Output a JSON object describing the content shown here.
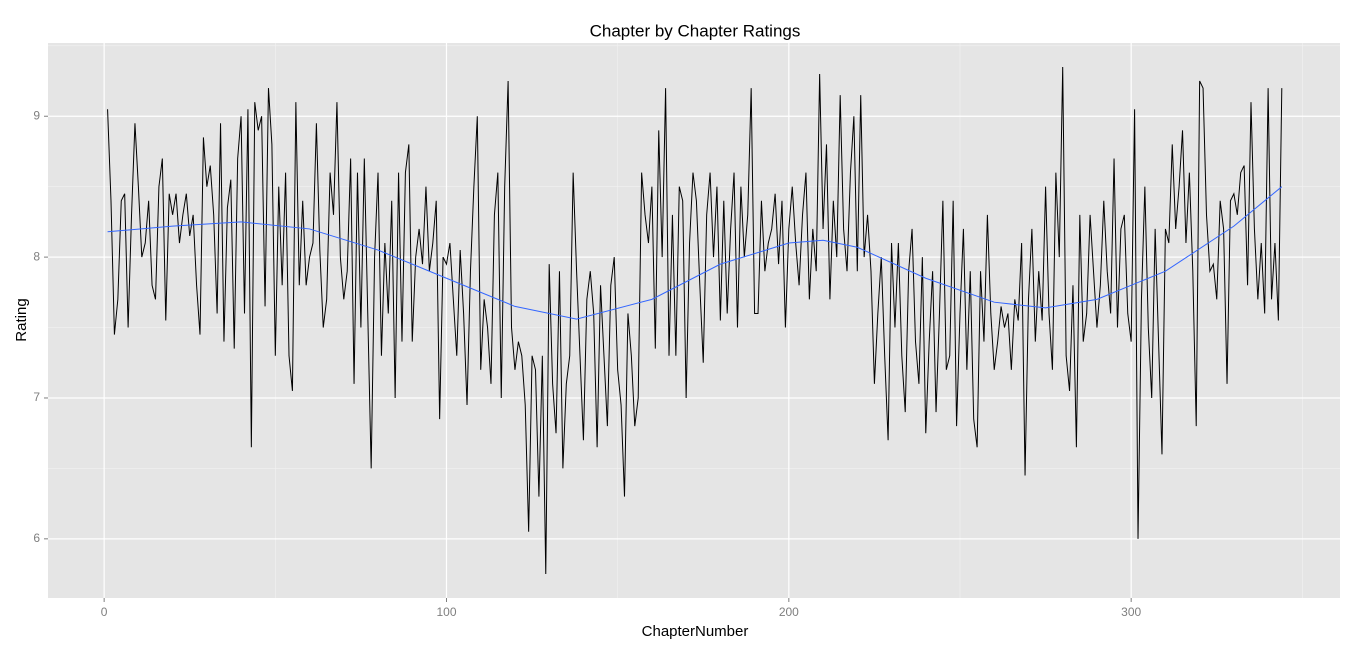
{
  "chart_data": {
    "type": "line",
    "title": "Chapter by Chapter Ratings",
    "xlabel": "ChapterNumber",
    "ylabel": "Rating",
    "color": "#000000",
    "grid": true,
    "xlim": [
      -16.4,
      361
    ],
    "ylim": [
      5.58,
      9.52
    ],
    "xticks": [
      0,
      100,
      200,
      300
    ],
    "yticks": [
      6,
      7,
      8,
      9
    ],
    "xminor": [
      50,
      150,
      250,
      350
    ],
    "yminor": [
      6.5,
      7.5,
      8.5,
      9.5
    ],
    "x": [
      1,
      2,
      3,
      4,
      5,
      6,
      7,
      8,
      9,
      10,
      11,
      12,
      13,
      14,
      15,
      16,
      17,
      18,
      19,
      20,
      21,
      22,
      23,
      24,
      25,
      26,
      27,
      28,
      29,
      30,
      31,
      32,
      33,
      34,
      35,
      36,
      37,
      38,
      39,
      40,
      41,
      42,
      43,
      44,
      45,
      46,
      47,
      48,
      49,
      50,
      51,
      52,
      53,
      54,
      55,
      56,
      57,
      58,
      59,
      60,
      61,
      62,
      63,
      64,
      65,
      66,
      67,
      68,
      69,
      70,
      71,
      72,
      73,
      74,
      75,
      76,
      77,
      78,
      79,
      80,
      81,
      82,
      83,
      84,
      85,
      86,
      87,
      88,
      89,
      90,
      91,
      92,
      93,
      94,
      95,
      96,
      97,
      98,
      99,
      100,
      101,
      102,
      103,
      104,
      105,
      106,
      107,
      108,
      109,
      110,
      111,
      112,
      113,
      114,
      115,
      116,
      117,
      118,
      119,
      120,
      121,
      122,
      123,
      124,
      125,
      126,
      127,
      128,
      129,
      130,
      131,
      132,
      133,
      134,
      135,
      136,
      137,
      138,
      139,
      140,
      141,
      142,
      143,
      144,
      145,
      146,
      147,
      148,
      149,
      150,
      151,
      152,
      153,
      154,
      155,
      156,
      157,
      158,
      159,
      160,
      161,
      162,
      163,
      164,
      165,
      166,
      167,
      168,
      169,
      170,
      171,
      172,
      173,
      174,
      175,
      176,
      177,
      178,
      179,
      180,
      181,
      182,
      183,
      184,
      185,
      186,
      187,
      188,
      189,
      190,
      191,
      192,
      193,
      194,
      195,
      196,
      197,
      198,
      199,
      200,
      201,
      202,
      203,
      204,
      205,
      206,
      207,
      208,
      209,
      210,
      211,
      212,
      213,
      214,
      215,
      216,
      217,
      218,
      219,
      220,
      221,
      222,
      223,
      224,
      225,
      226,
      227,
      228,
      229,
      230,
      231,
      232,
      233,
      234,
      235,
      236,
      237,
      238,
      239,
      240,
      241,
      242,
      243,
      244,
      245,
      246,
      247,
      248,
      249,
      250,
      251,
      252,
      253,
      254,
      255,
      256,
      257,
      258,
      259,
      260,
      261,
      262,
      263,
      264,
      265,
      266,
      267,
      268,
      269,
      270,
      271,
      272,
      273,
      274,
      275,
      276,
      277,
      278,
      279,
      280,
      281,
      282,
      283,
      284,
      285,
      286,
      287,
      288,
      289,
      290,
      291,
      292,
      293,
      294,
      295,
      296,
      297,
      298,
      299,
      300,
      301,
      302,
      303,
      304,
      305,
      306,
      307,
      308,
      309,
      310,
      311,
      312,
      313,
      314,
      315,
      316,
      317,
      318,
      319,
      320,
      321,
      322,
      323,
      324,
      325,
      326,
      327,
      328,
      329,
      330,
      331,
      332,
      333,
      334,
      335,
      336,
      337,
      338,
      339,
      340,
      341,
      342,
      343,
      344
    ],
    "values": [
      9.05,
      8.4,
      7.45,
      7.7,
      8.4,
      8.45,
      7.5,
      8.3,
      8.95,
      8.5,
      8.0,
      8.1,
      8.4,
      7.8,
      7.7,
      8.5,
      8.7,
      7.55,
      8.45,
      8.3,
      8.45,
      8.1,
      8.3,
      8.45,
      8.15,
      8.3,
      7.8,
      7.45,
      8.85,
      8.5,
      8.65,
      8.3,
      7.6,
      8.95,
      7.4,
      8.35,
      8.55,
      7.35,
      8.7,
      9.0,
      7.6,
      9.05,
      6.65,
      9.1,
      8.9,
      9.0,
      7.65,
      9.2,
      8.8,
      7.3,
      8.5,
      7.8,
      8.6,
      7.3,
      7.05,
      9.1,
      7.8,
      8.4,
      7.8,
      8.0,
      8.1,
      8.95,
      8.05,
      7.5,
      7.7,
      8.6,
      8.3,
      9.1,
      8.0,
      7.7,
      7.9,
      8.7,
      7.1,
      8.6,
      7.5,
      8.7,
      7.6,
      6.5,
      8.0,
      8.6,
      7.3,
      8.1,
      7.6,
      8.4,
      7.0,
      8.6,
      7.4,
      8.6,
      8.8,
      7.4,
      8.0,
      8.2,
      7.95,
      8.5,
      7.9,
      8.1,
      8.4,
      6.85,
      8.0,
      7.95,
      8.1,
      7.7,
      7.3,
      8.05,
      7.6,
      6.95,
      7.9,
      8.5,
      9.0,
      7.2,
      7.7,
      7.5,
      7.1,
      8.3,
      8.6,
      7.0,
      8.5,
      9.25,
      7.5,
      7.2,
      7.4,
      7.3,
      6.95,
      6.05,
      7.3,
      7.2,
      6.3,
      7.3,
      5.75,
      7.95,
      7.1,
      6.75,
      7.9,
      6.5,
      7.1,
      7.3,
      8.6,
      7.9,
      7.3,
      6.7,
      7.7,
      7.9,
      7.6,
      6.65,
      7.8,
      7.3,
      6.8,
      7.8,
      8.0,
      7.2,
      6.95,
      6.3,
      7.6,
      7.3,
      6.8,
      7.0,
      8.6,
      8.3,
      8.1,
      8.5,
      7.35,
      8.9,
      8.0,
      9.2,
      7.3,
      8.3,
      7.3,
      8.5,
      8.4,
      7.0,
      8.1,
      8.6,
      8.4,
      7.8,
      7.25,
      8.3,
      8.6,
      8.0,
      8.5,
      7.55,
      8.4,
      7.6,
      8.2,
      8.6,
      7.5,
      8.5,
      8.0,
      8.3,
      9.2,
      7.6,
      7.6,
      8.4,
      7.9,
      8.1,
      8.2,
      8.45,
      7.95,
      8.4,
      7.5,
      8.2,
      8.5,
      8.1,
      7.8,
      8.3,
      8.6,
      7.7,
      8.2,
      7.9,
      9.3,
      8.2,
      8.8,
      7.7,
      8.4,
      8.0,
      9.15,
      8.2,
      7.9,
      8.6,
      9.0,
      7.9,
      9.15,
      8.0,
      8.3,
      7.9,
      7.1,
      7.6,
      8.0,
      7.3,
      6.7,
      8.1,
      7.5,
      8.1,
      7.3,
      6.9,
      7.9,
      8.2,
      7.4,
      7.1,
      8.0,
      6.75,
      7.4,
      7.9,
      6.9,
      7.6,
      8.4,
      7.2,
      7.3,
      8.4,
      6.8,
      7.6,
      8.2,
      7.2,
      7.9,
      6.85,
      6.65,
      7.9,
      7.4,
      8.3,
      7.6,
      7.2,
      7.4,
      7.65,
      7.5,
      7.6,
      7.2,
      7.7,
      7.55,
      8.1,
      6.45,
      7.7,
      8.2,
      7.4,
      7.9,
      7.55,
      8.5,
      7.6,
      7.2,
      8.6,
      8.0,
      9.35,
      7.3,
      7.05,
      7.8,
      6.65,
      8.3,
      7.4,
      7.6,
      8.3,
      7.9,
      7.5,
      7.8,
      8.4,
      7.9,
      7.6,
      8.7,
      7.5,
      8.2,
      8.3,
      7.6,
      7.4,
      9.05,
      6.0,
      7.7,
      8.5,
      7.5,
      7.0,
      8.2,
      7.4,
      6.6,
      8.2,
      8.1,
      8.8,
      8.2,
      8.5,
      8.9,
      8.1,
      8.6,
      7.9,
      6.8,
      9.25,
      9.2,
      8.3,
      7.9,
      7.95,
      7.7,
      8.4,
      8.2,
      7.1,
      8.4,
      8.45,
      8.3,
      8.6,
      8.65,
      7.8,
      9.1,
      8.2,
      7.7,
      8.1,
      7.6,
      9.2,
      7.7,
      8.1,
      7.55,
      9.2
    ],
    "smooth": {
      "color": "#3366ff",
      "x": [
        1,
        20,
        40,
        60,
        80,
        100,
        120,
        138,
        160,
        180,
        200,
        210,
        220,
        240,
        260,
        275,
        290,
        310,
        330,
        344
      ],
      "values": [
        8.18,
        8.22,
        8.25,
        8.2,
        8.05,
        7.85,
        7.65,
        7.56,
        7.7,
        7.95,
        8.1,
        8.12,
        8.07,
        7.85,
        7.68,
        7.64,
        7.7,
        7.9,
        8.22,
        8.5
      ]
    }
  }
}
